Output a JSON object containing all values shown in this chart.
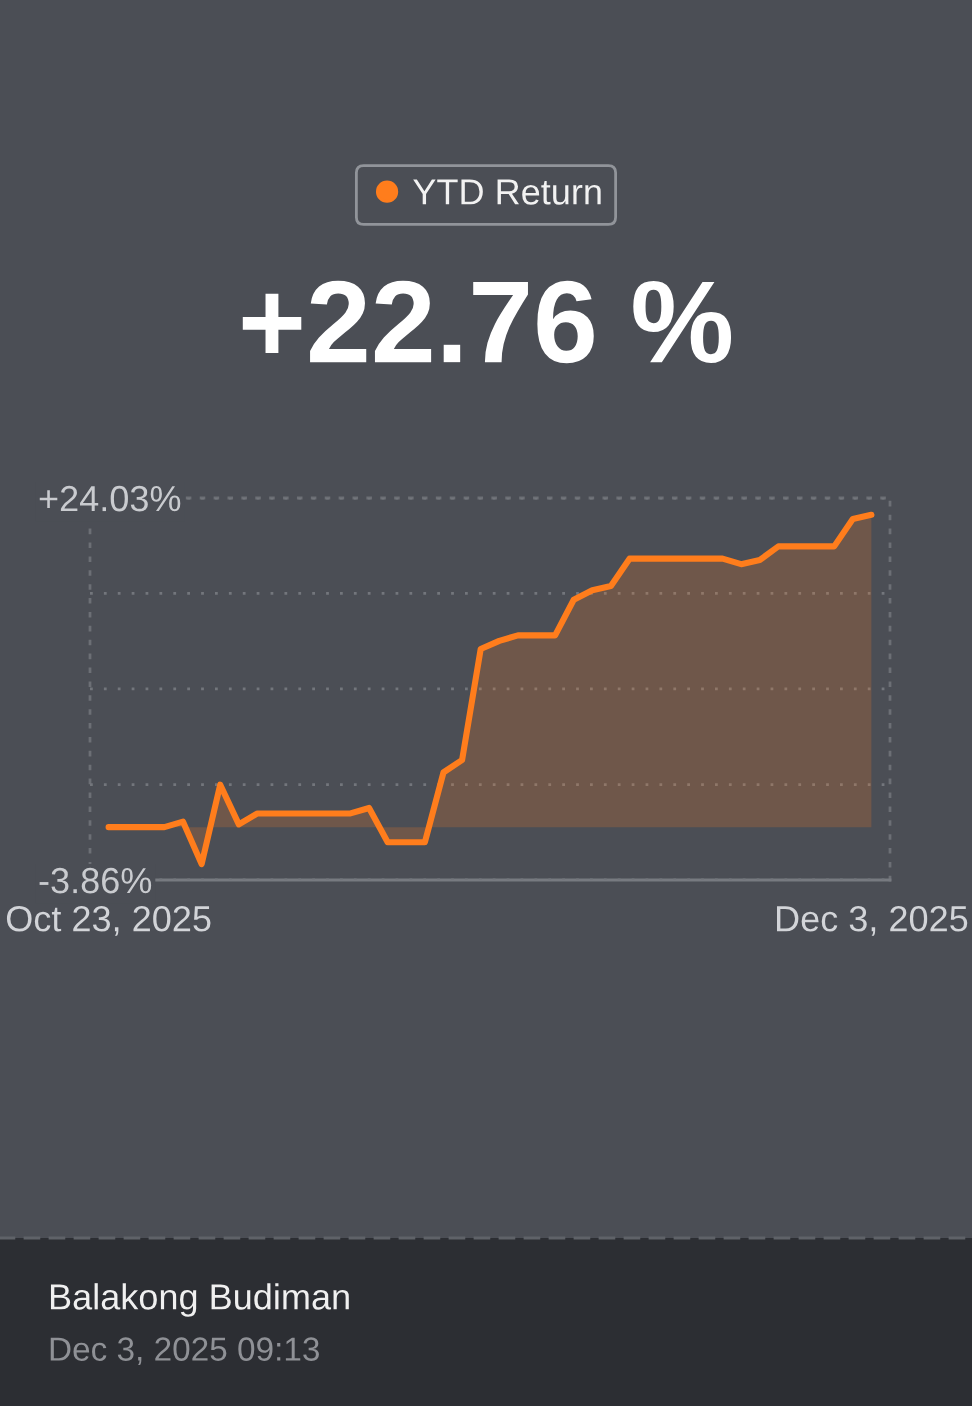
{
  "chart_data": {
    "type": "area",
    "title": "+22.76 %",
    "annotations": [
      "Balakong Budiman",
      "Dec 3, 2025 09:13"
    ],
    "x": [
      "2025-10-23",
      "2025-10-24",
      "2025-10-25",
      "2025-10-26",
      "2025-10-27",
      "2025-10-28",
      "2025-10-29",
      "2025-10-30",
      "2025-10-31",
      "2025-11-01",
      "2025-11-02",
      "2025-11-03",
      "2025-11-04",
      "2025-11-05",
      "2025-11-06",
      "2025-11-07",
      "2025-11-08",
      "2025-11-09",
      "2025-11-10",
      "2025-11-11",
      "2025-11-12",
      "2025-11-13",
      "2025-11-14",
      "2025-11-15",
      "2025-11-16",
      "2025-11-17",
      "2025-11-18",
      "2025-11-19",
      "2025-11-20",
      "2025-11-21",
      "2025-11-22",
      "2025-11-23",
      "2025-11-24",
      "2025-11-25",
      "2025-11-26",
      "2025-11-27",
      "2025-11-28",
      "2025-11-29",
      "2025-11-30",
      "2025-12-01",
      "2025-12-02",
      "2025-12-03"
    ],
    "series": [
      {
        "name": "YTD Return",
        "color": "#ff7d1c",
        "values": [
          0.0,
          0.0,
          0.0,
          0.0,
          0.4,
          -2.7,
          3.1,
          0.2,
          1.0,
          1.0,
          1.0,
          1.0,
          1.0,
          1.0,
          1.4,
          -1.1,
          -1.1,
          -1.1,
          4.0,
          4.9,
          13.0,
          13.6,
          14.0,
          14.0,
          14.0,
          16.6,
          17.3,
          17.6,
          19.6,
          19.6,
          19.6,
          19.6,
          19.6,
          19.6,
          19.2,
          19.5,
          20.5,
          20.5,
          20.5,
          20.5,
          22.5,
          22.8
        ]
      }
    ],
    "xlim": [
      "2025-10-22",
      "2025-12-04"
    ],
    "xticks": [
      {
        "value": "2025-10-23",
        "label": "Oct 23, 2025"
      },
      {
        "value": "2025-12-03",
        "label": "Dec 3, 2025"
      }
    ],
    "ylim": [
      -3.86,
      24.03
    ],
    "yticks": [
      {
        "value": 24.03,
        "label": "+24.03%"
      },
      {
        "value": 17.06,
        "label": null
      },
      {
        "value": 10.09,
        "label": null
      },
      {
        "value": 3.11,
        "label": null
      },
      {
        "value": -3.86,
        "label": "-3.86%"
      }
    ],
    "grid": "y",
    "legend": "top"
  }
}
